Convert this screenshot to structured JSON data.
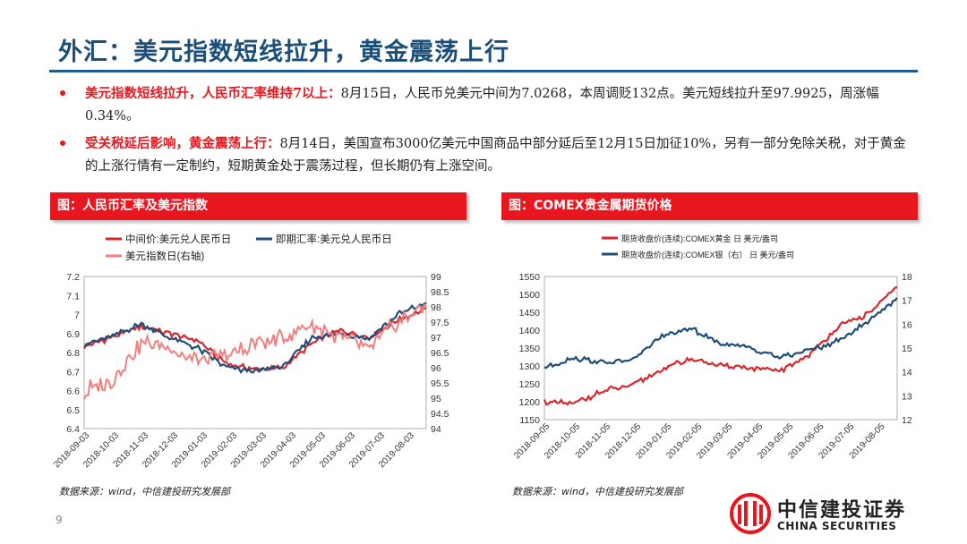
{
  "page": {
    "title": "外汇：美元指数短线拉升，黄金震荡上行",
    "page_number": "9",
    "source_left": "数据来源：wind，中信建投研究发展部",
    "source_right": "数据来源：wind，中信建投研究发展部",
    "logo_cn": "中信建投证券",
    "logo_en": "CHINA SECURITIES",
    "colors": {
      "accent_red": "#e8161e",
      "title_blue": "#1b4f7a",
      "series_red": "#d9272e",
      "series_blue": "#1f4e79",
      "series_pink": "#f08080"
    }
  },
  "bullets": [
    {
      "lead": "美元指数短线拉升，人民币汇率维持7以上：",
      "text": "8月15日，人民币兑美元中间为7.0268，本周调贬132点。美元短线拉升至97.9925，周涨幅0.34%。"
    },
    {
      "lead": "受关税延后影响，黄金震荡上行：",
      "text": "8月14日，美国宣布3000亿美元中国商品中部分延后至12月15日加征10%，另有一部分免除关税，对于黄金的上涨行情有一定制约，短期黄金处于震荡过程，但长期仍有上涨空间。"
    }
  ],
  "banners": {
    "left": "图：人民币汇率及美元指数",
    "right": "图：COMEX贵金属期货价格"
  },
  "chart_data": [
    {
      "type": "line",
      "title": "图：人民币汇率及美元指数",
      "legend_placement": "top",
      "x": [
        "2018-09-03",
        "2018-10-03",
        "2018-11-03",
        "2018-12-03",
        "2019-01-03",
        "2019-02-03",
        "2019-03-03",
        "2019-04-03",
        "2019-05-03",
        "2019-06-03",
        "2019-07-03",
        "2019-08-03",
        "2019-08-15"
      ],
      "xticks": [
        "2018-09-03",
        "2018-10-03",
        "2018-11-03",
        "2018-12-03",
        "2019-01-03",
        "2019-02-03",
        "2019-03-03",
        "2019-04-03",
        "2019-05-03",
        "2019-06-03",
        "2019-07-03",
        "2019-08-03"
      ],
      "y_left": {
        "ylim": [
          6.4,
          7.2
        ],
        "ticks": [
          "6.4",
          "6.5",
          "6.6",
          "6.7",
          "6.8",
          "6.9",
          "7",
          "7.1",
          "7.2"
        ]
      },
      "y_right": {
        "ylim": [
          94,
          99
        ],
        "ticks": [
          "94",
          "94.5",
          "95",
          "95.5",
          "96",
          "96.5",
          "97",
          "97.5",
          "98",
          "98.5",
          "99"
        ]
      },
      "series": [
        {
          "name": "中间价:美元兑人民币日",
          "axis": "left",
          "color": "#d9272e",
          "values": [
            6.83,
            6.88,
            6.94,
            6.9,
            6.86,
            6.74,
            6.71,
            6.72,
            6.85,
            6.92,
            6.88,
            6.97,
            7.03
          ]
        },
        {
          "name": "即期汇率:美元兑人民币日",
          "axis": "left",
          "color": "#1f4e79",
          "values": [
            6.84,
            6.89,
            6.95,
            6.88,
            6.82,
            6.72,
            6.7,
            6.73,
            6.88,
            6.9,
            6.87,
            7.0,
            7.06
          ]
        },
        {
          "name": "美元指数日(右轴)",
          "axis": "right",
          "color": "#f08080",
          "values": [
            95.2,
            95.6,
            96.8,
            96.7,
            96.2,
            96.4,
            96.8,
            97.0,
            97.4,
            97.0,
            96.6,
            97.5,
            98.0
          ]
        }
      ]
    },
    {
      "type": "line",
      "title": "图：COMEX贵金属期货价格",
      "legend_placement": "top",
      "x": [
        "2018-09-05",
        "2018-10-05",
        "2018-11-05",
        "2018-12-05",
        "2019-01-05",
        "2019-02-05",
        "2019-03-05",
        "2019-04-05",
        "2019-05-05",
        "2019-06-05",
        "2019-07-05",
        "2019-08-05",
        "2019-08-14"
      ],
      "xticks": [
        "2018-09-05",
        "2018-10-05",
        "2018-11-05",
        "2018-12-05",
        "2019-01-05",
        "2019-02-05",
        "2019-03-05",
        "2019-04-05",
        "2019-05-05",
        "2019-06-05",
        "2019-07-05",
        "2019-08-05"
      ],
      "y_left": {
        "ylim": [
          1150,
          1550
        ],
        "ticks": [
          "1150",
          "1200",
          "1250",
          "1300",
          "1350",
          "1400",
          "1450",
          "1500",
          "1550"
        ]
      },
      "y_right": {
        "ylim": [
          12,
          18
        ],
        "ticks": [
          "12",
          "13",
          "14",
          "15",
          "16",
          "17",
          "18"
        ]
      },
      "series": [
        {
          "name": "期货收盘价(连续):COMEX黄金  日 美元/盎司",
          "axis": "left",
          "color": "#d9272e",
          "values": [
            1200,
            1195,
            1230,
            1245,
            1290,
            1320,
            1300,
            1295,
            1285,
            1330,
            1410,
            1445,
            1520
          ]
        },
        {
          "name": "期货收盘价(连续):COMEX银（右）  日 美元/盎司",
          "axis": "right",
          "color": "#1f4e79",
          "values": [
            14.2,
            14.6,
            14.4,
            14.5,
            15.5,
            15.8,
            15.2,
            15.0,
            14.6,
            14.9,
            15.3,
            16.1,
            17.1
          ]
        }
      ]
    }
  ]
}
